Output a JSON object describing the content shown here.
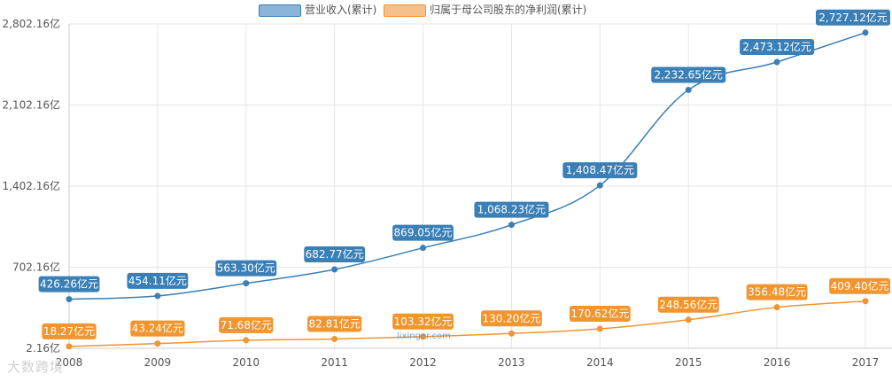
{
  "chart_data": {
    "type": "line",
    "categories": [
      "2008",
      "2009",
      "2010",
      "2011",
      "2012",
      "2013",
      "2014",
      "2015",
      "2016",
      "2017"
    ],
    "series": [
      {
        "name": "营业收入(累计)",
        "color": "#3a7fb6",
        "swatch": "#8ab4d8",
        "values": [
          426.26,
          454.11,
          563.3,
          682.77,
          869.05,
          1068.23,
          1408.47,
          2232.65,
          2473.12,
          2727.12
        ],
        "labels": [
          "426.26亿元",
          "454.11亿元",
          "563.30亿元",
          "682.77亿元",
          "869.05亿元",
          "1,068.23亿元",
          "1,408.47亿元",
          "2,232.65亿元",
          "2,473.12亿元",
          "2,727.12亿元"
        ]
      },
      {
        "name": "归属于母公司股东的净利润(累计)",
        "color": "#f0952f",
        "swatch": "#f7c08a",
        "values": [
          18.27,
          43.24,
          71.68,
          82.81,
          103.32,
          130.2,
          170.62,
          248.56,
          356.48,
          409.4
        ],
        "labels": [
          "18.27亿元",
          "43.24亿元",
          "71.68亿元",
          "82.81亿元",
          "103.32亿元",
          "130.20亿元",
          "170.62亿元",
          "248.56亿元",
          "356.48亿元",
          "409.40亿元"
        ]
      }
    ],
    "yticks": [
      2.16,
      702.16,
      1402.16,
      2102.16,
      2802.16
    ],
    "ytick_labels": [
      "2.16亿",
      "702.16亿",
      "1,402.16亿",
      "2,102.16亿",
      "2,802.16亿"
    ],
    "ylim": [
      2.16,
      2802.16
    ],
    "grid": true,
    "legend_position": "top-center"
  },
  "watermark": "lixinger.com",
  "brand": "大数跨境"
}
